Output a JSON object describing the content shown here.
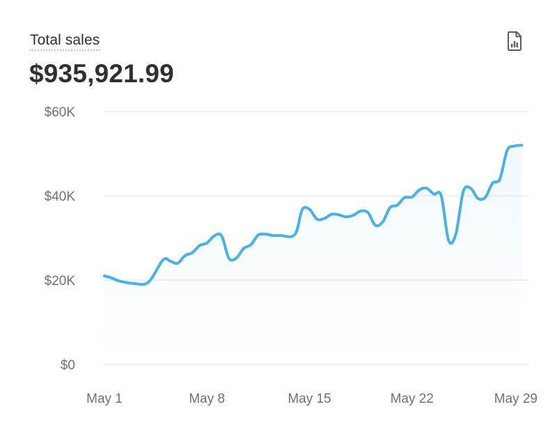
{
  "header": {
    "title": "Total sales",
    "value": "$935,921.99",
    "export_icon": "report-file-icon"
  },
  "colors": {
    "line": "#46b1ea",
    "grid": "#ebebeb",
    "tick_text": "#707070",
    "title_text": "#303030"
  },
  "chart_data": {
    "type": "area",
    "title": "Total sales",
    "xlabel": "",
    "ylabel": "",
    "ylim": [
      0,
      60000
    ],
    "grid": true,
    "y_ticks": [
      0,
      20000,
      40000,
      60000
    ],
    "y_tick_labels": [
      "$0",
      "$20K",
      "$40K",
      "$60K"
    ],
    "x_ticks": [
      1,
      8,
      15,
      22,
      29
    ],
    "x_tick_labels": [
      "May 1",
      "May 8",
      "May 15",
      "May 22",
      "May 29"
    ],
    "x_range": [
      1,
      30
    ],
    "series": [
      {
        "x": [
          1,
          1.5,
          2,
          3,
          4,
          5,
          5.5,
          6,
          6.5,
          7,
          7.5,
          8,
          8.5,
          9,
          9.5,
          10,
          10.5,
          11,
          11.5,
          12,
          12.5,
          13,
          14,
          14.5,
          15,
          15.5,
          16,
          16.5,
          17,
          17.5,
          18,
          18.5,
          19,
          19.5,
          20,
          20.5,
          21,
          21.5,
          22,
          22.5,
          23,
          23.5,
          24,
          24.5,
          25,
          25.5,
          26,
          26.5,
          27,
          27.5,
          28,
          28.5,
          29,
          29.5
        ],
        "values": [
          21000,
          20500,
          19800,
          19200,
          19500,
          24800,
          24500,
          24000,
          25800,
          26500,
          28200,
          28800,
          30500,
          30500,
          25200,
          25200,
          27500,
          28400,
          30700,
          30900,
          30600,
          30600,
          30800,
          36700,
          36800,
          34500,
          34600,
          35600,
          35500,
          35000,
          35400,
          36400,
          36000,
          33000,
          33800,
          37200,
          37800,
          39600,
          39700,
          41400,
          41800,
          40400,
          40000,
          29400,
          31000,
          41000,
          41800,
          39400,
          39600,
          43000,
          44000,
          50800,
          51800,
          52000
        ]
      }
    ]
  }
}
